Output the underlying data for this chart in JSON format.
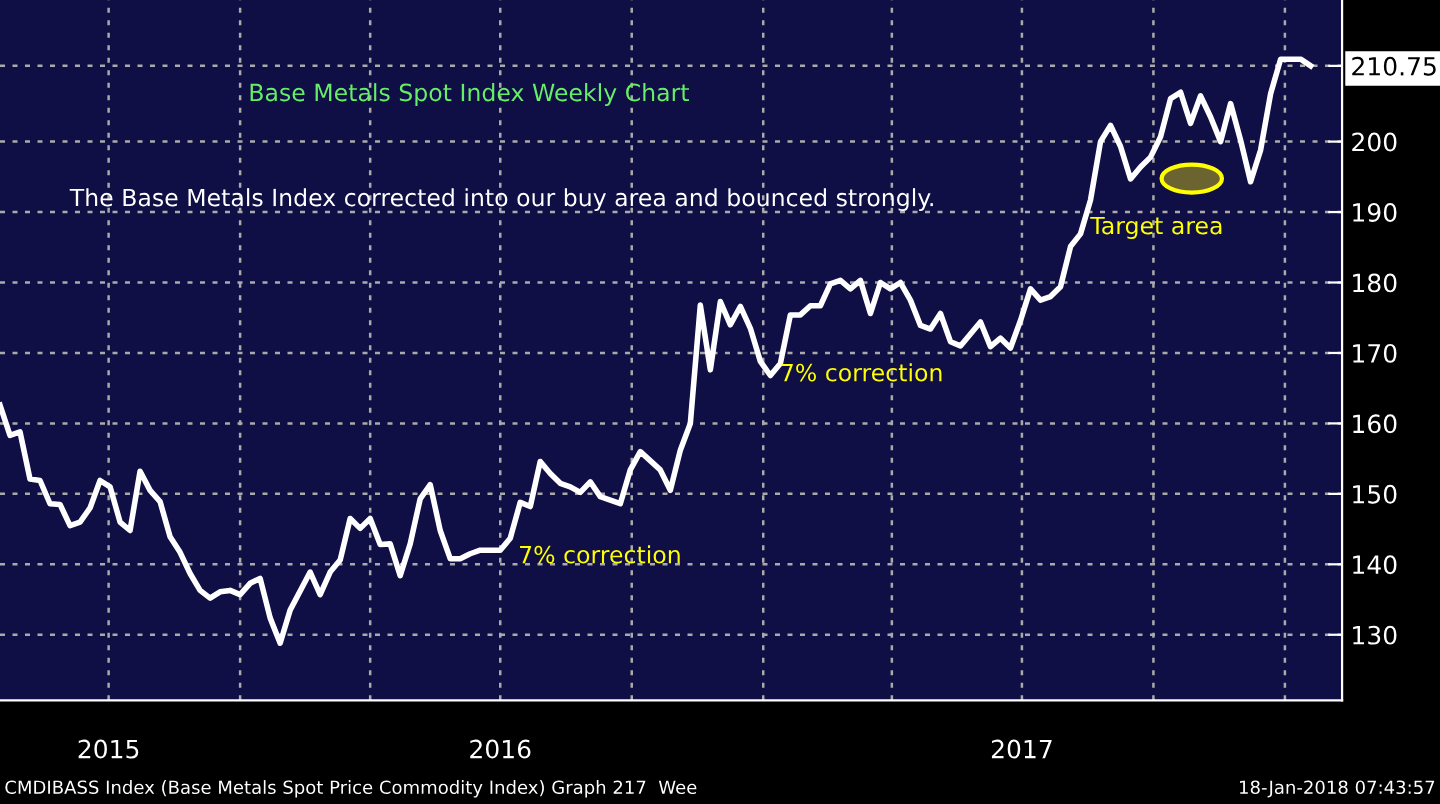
{
  "chart_data": {
    "type": "line",
    "title": "Base Metals Spot Index Weekly Chart",
    "subtitle": "The Base Metals Index corrected into our buy area and bounced strongly.",
    "x": [
      "2015-07-17",
      "2015-07-24",
      "2015-07-31",
      "2015-08-07",
      "2015-08-14",
      "2015-08-21",
      "2015-08-28",
      "2015-09-04",
      "2015-09-11",
      "2015-09-18",
      "2015-09-25",
      "2015-10-02",
      "2015-10-09",
      "2015-10-16",
      "2015-10-23",
      "2015-10-30",
      "2015-11-06",
      "2015-11-13",
      "2015-11-20",
      "2015-11-27",
      "2015-12-04",
      "2015-12-11",
      "2015-12-18",
      "2015-12-25",
      "2016-01-01",
      "2016-01-08",
      "2016-01-15",
      "2016-01-22",
      "2016-01-29",
      "2016-02-05",
      "2016-02-19",
      "2016-02-26",
      "2016-03-04",
      "2016-03-11",
      "2016-03-18",
      "2016-03-25",
      "2016-04-01",
      "2016-04-08",
      "2016-04-15",
      "2016-04-22",
      "2016-04-29",
      "2016-05-06",
      "2016-05-13",
      "2016-05-20",
      "2016-05-27",
      "2016-06-03",
      "2016-06-10",
      "2016-06-17",
      "2016-07-01",
      "2016-07-08",
      "2016-07-15",
      "2016-07-22",
      "2016-07-29",
      "2016-08-05",
      "2016-08-12",
      "2016-08-19",
      "2016-08-26",
      "2016-09-02",
      "2016-09-09",
      "2016-09-16",
      "2016-09-23",
      "2016-09-30",
      "2016-10-07",
      "2016-10-21",
      "2016-10-28",
      "2016-11-04",
      "2016-11-11",
      "2016-11-18",
      "2016-11-25",
      "2016-12-02",
      "2016-12-09",
      "2016-12-16",
      "2016-12-23",
      "2016-12-30",
      "2017-01-06",
      "2017-01-13",
      "2017-01-20",
      "2017-01-27",
      "2017-02-03",
      "2017-02-10",
      "2017-02-17",
      "2017-02-24",
      "2017-03-03",
      "2017-03-10",
      "2017-03-17",
      "2017-03-24",
      "2017-03-31",
      "2017-04-07",
      "2017-04-14",
      "2017-04-21",
      "2017-04-28",
      "2017-05-05",
      "2017-05-12",
      "2017-05-19",
      "2017-05-26",
      "2017-06-02",
      "2017-06-09",
      "2017-06-16",
      "2017-06-23",
      "2017-06-30",
      "2017-07-07",
      "2017-07-14",
      "2017-07-21",
      "2017-07-28",
      "2017-08-04",
      "2017-08-11",
      "2017-08-18",
      "2017-08-25",
      "2017-09-01",
      "2017-09-08",
      "2017-09-15",
      "2017-09-22",
      "2017-09-29",
      "2017-10-06",
      "2017-10-13",
      "2017-10-20",
      "2017-10-27",
      "2017-11-03",
      "2017-11-10",
      "2017-11-17",
      "2017-11-24",
      "2017-12-01",
      "2017-12-08",
      "2017-12-15",
      "2017-12-22",
      "2017-12-29",
      "2018-01-12",
      "2018-01-19"
    ],
    "series": [
      {
        "color": "#ffffff",
        "values": [
          162.6,
          158.3,
          158.8,
          152.1,
          151.9,
          148.6,
          148.5,
          145.5,
          146.0,
          148.0,
          151.9,
          151.0,
          146.0,
          144.8,
          153.2,
          150.5,
          148.9,
          143.9,
          141.7,
          138.7,
          136.3,
          135.2,
          136.1,
          136.3,
          135.7,
          137.3,
          138.0,
          132.4,
          128.8,
          133.5,
          138.9,
          135.7,
          138.9,
          140.6,
          146.5,
          145.1,
          146.5,
          142.8,
          142.9,
          138.4,
          142.9,
          149.3,
          151.3,
          144.8,
          140.8,
          140.8,
          141.5,
          142.0,
          142.0,
          143.7,
          148.8,
          148.2,
          154.6,
          152.9,
          151.5,
          151.0,
          150.2,
          151.7,
          149.6,
          149.1,
          148.6,
          153.4,
          156.0,
          153.4,
          150.5,
          156.2,
          160.0,
          176.8,
          167.6,
          177.3,
          174.0,
          176.6,
          173.5,
          168.8,
          166.8,
          168.5,
          175.4,
          175.4,
          176.7,
          176.7,
          179.8,
          180.3,
          179.1,
          180.3,
          175.6,
          180.0,
          179.1,
          180.0,
          177.5,
          173.9,
          173.4,
          175.6,
          171.6,
          171.0,
          172.7,
          174.4,
          170.9,
          172.1,
          170.7,
          174.6,
          179.1,
          177.5,
          178.0,
          179.4,
          185.1,
          186.9,
          191.7,
          200.0,
          202.3,
          199.3,
          194.7,
          196.4,
          197.8,
          200.7,
          206.1,
          207.0,
          202.6,
          206.5,
          203.5,
          200.0,
          205.4,
          200.2,
          194.3,
          198.8,
          206.8,
          211.7,
          211.7,
          210.75
        ]
      }
    ],
    "xlim": [
      "2015-07-17",
      "2018-02-10"
    ],
    "xticks": [
      {
        "value": "2015-10-01",
        "label": "2015"
      },
      {
        "value": "2016-01-01",
        "label": null
      },
      {
        "value": "2016-04-01",
        "label": null
      },
      {
        "value": "2016-07-01",
        "label": "2016"
      },
      {
        "value": "2016-10-01",
        "label": null
      },
      {
        "value": "2017-01-01",
        "label": null
      },
      {
        "value": "2017-04-01",
        "label": null
      },
      {
        "value": "2017-07-01",
        "label": "2017"
      },
      {
        "value": "2017-10-01",
        "label": null
      },
      {
        "value": "2018-01-01",
        "label": null
      }
    ],
    "ylim": [
      120.7,
      220.1
    ],
    "yticks": [
      130,
      140,
      150,
      160,
      170,
      180,
      190,
      200,
      {
        "value": 210.75,
        "label": "210.75"
      }
    ],
    "grid": true,
    "legend": false,
    "annotations": [
      "7% correction",
      "7% correction",
      "Target area",
      "CMDIBASS Index (Base Metals Spot Price Commodity Index) Graph 217  Wee",
      "18-Jan-2018 07:43:57"
    ]
  }
}
